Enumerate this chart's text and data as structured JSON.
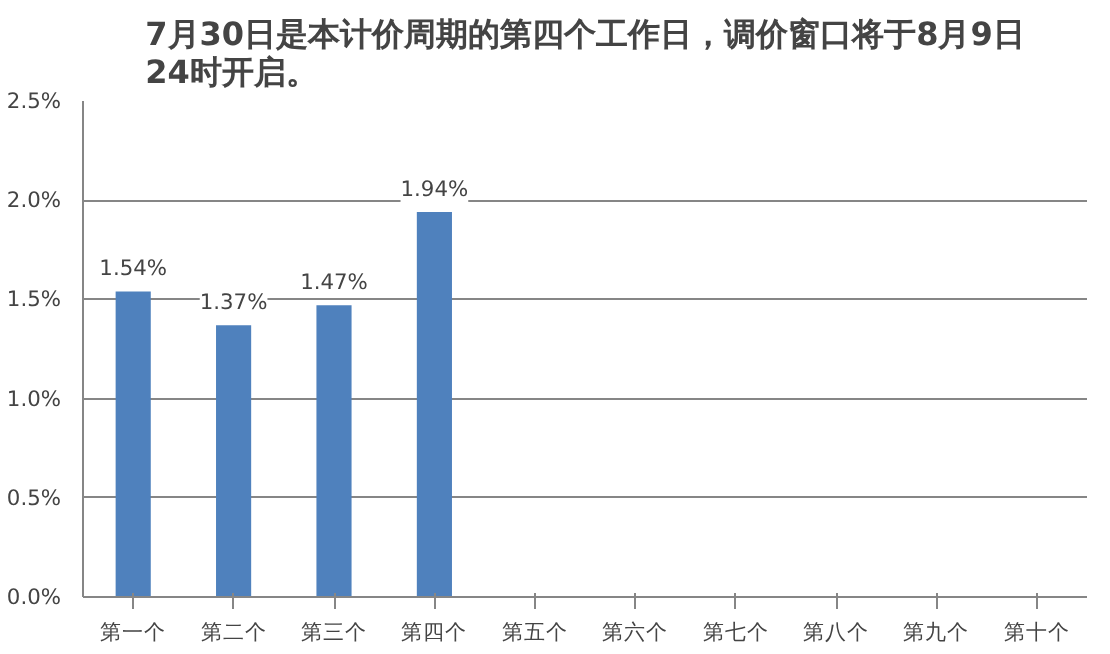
{
  "chart_data": {
    "type": "bar",
    "title": "7月30日是本计价周期的第四个工作日，调价窗口将于8月9日24时开启。",
    "categories": [
      "第一个",
      "第二个",
      "第三个",
      "第四个",
      "第五个",
      "第六个",
      "第七个",
      "第八个",
      "第九个",
      "第十个"
    ],
    "values": [
      1.54,
      1.37,
      1.47,
      1.94,
      null,
      null,
      null,
      null,
      null,
      null
    ],
    "value_labels": [
      "1.54%",
      "1.37%",
      "1.47%",
      "1.94%",
      null,
      null,
      null,
      null,
      null,
      null
    ],
    "color": "#4f81bd",
    "ylim": [
      0,
      2.5
    ],
    "yticks": [
      {
        "value": 0,
        "label": "0.0%"
      },
      {
        "value": 0.5,
        "label": "0.5%"
      },
      {
        "value": 1.0,
        "label": "1.0%"
      },
      {
        "value": 1.5,
        "label": "1.5%"
      },
      {
        "value": 2.0,
        "label": "2.0%"
      },
      {
        "value": 2.5,
        "label": "2.5%"
      }
    ],
    "grid": "y"
  }
}
